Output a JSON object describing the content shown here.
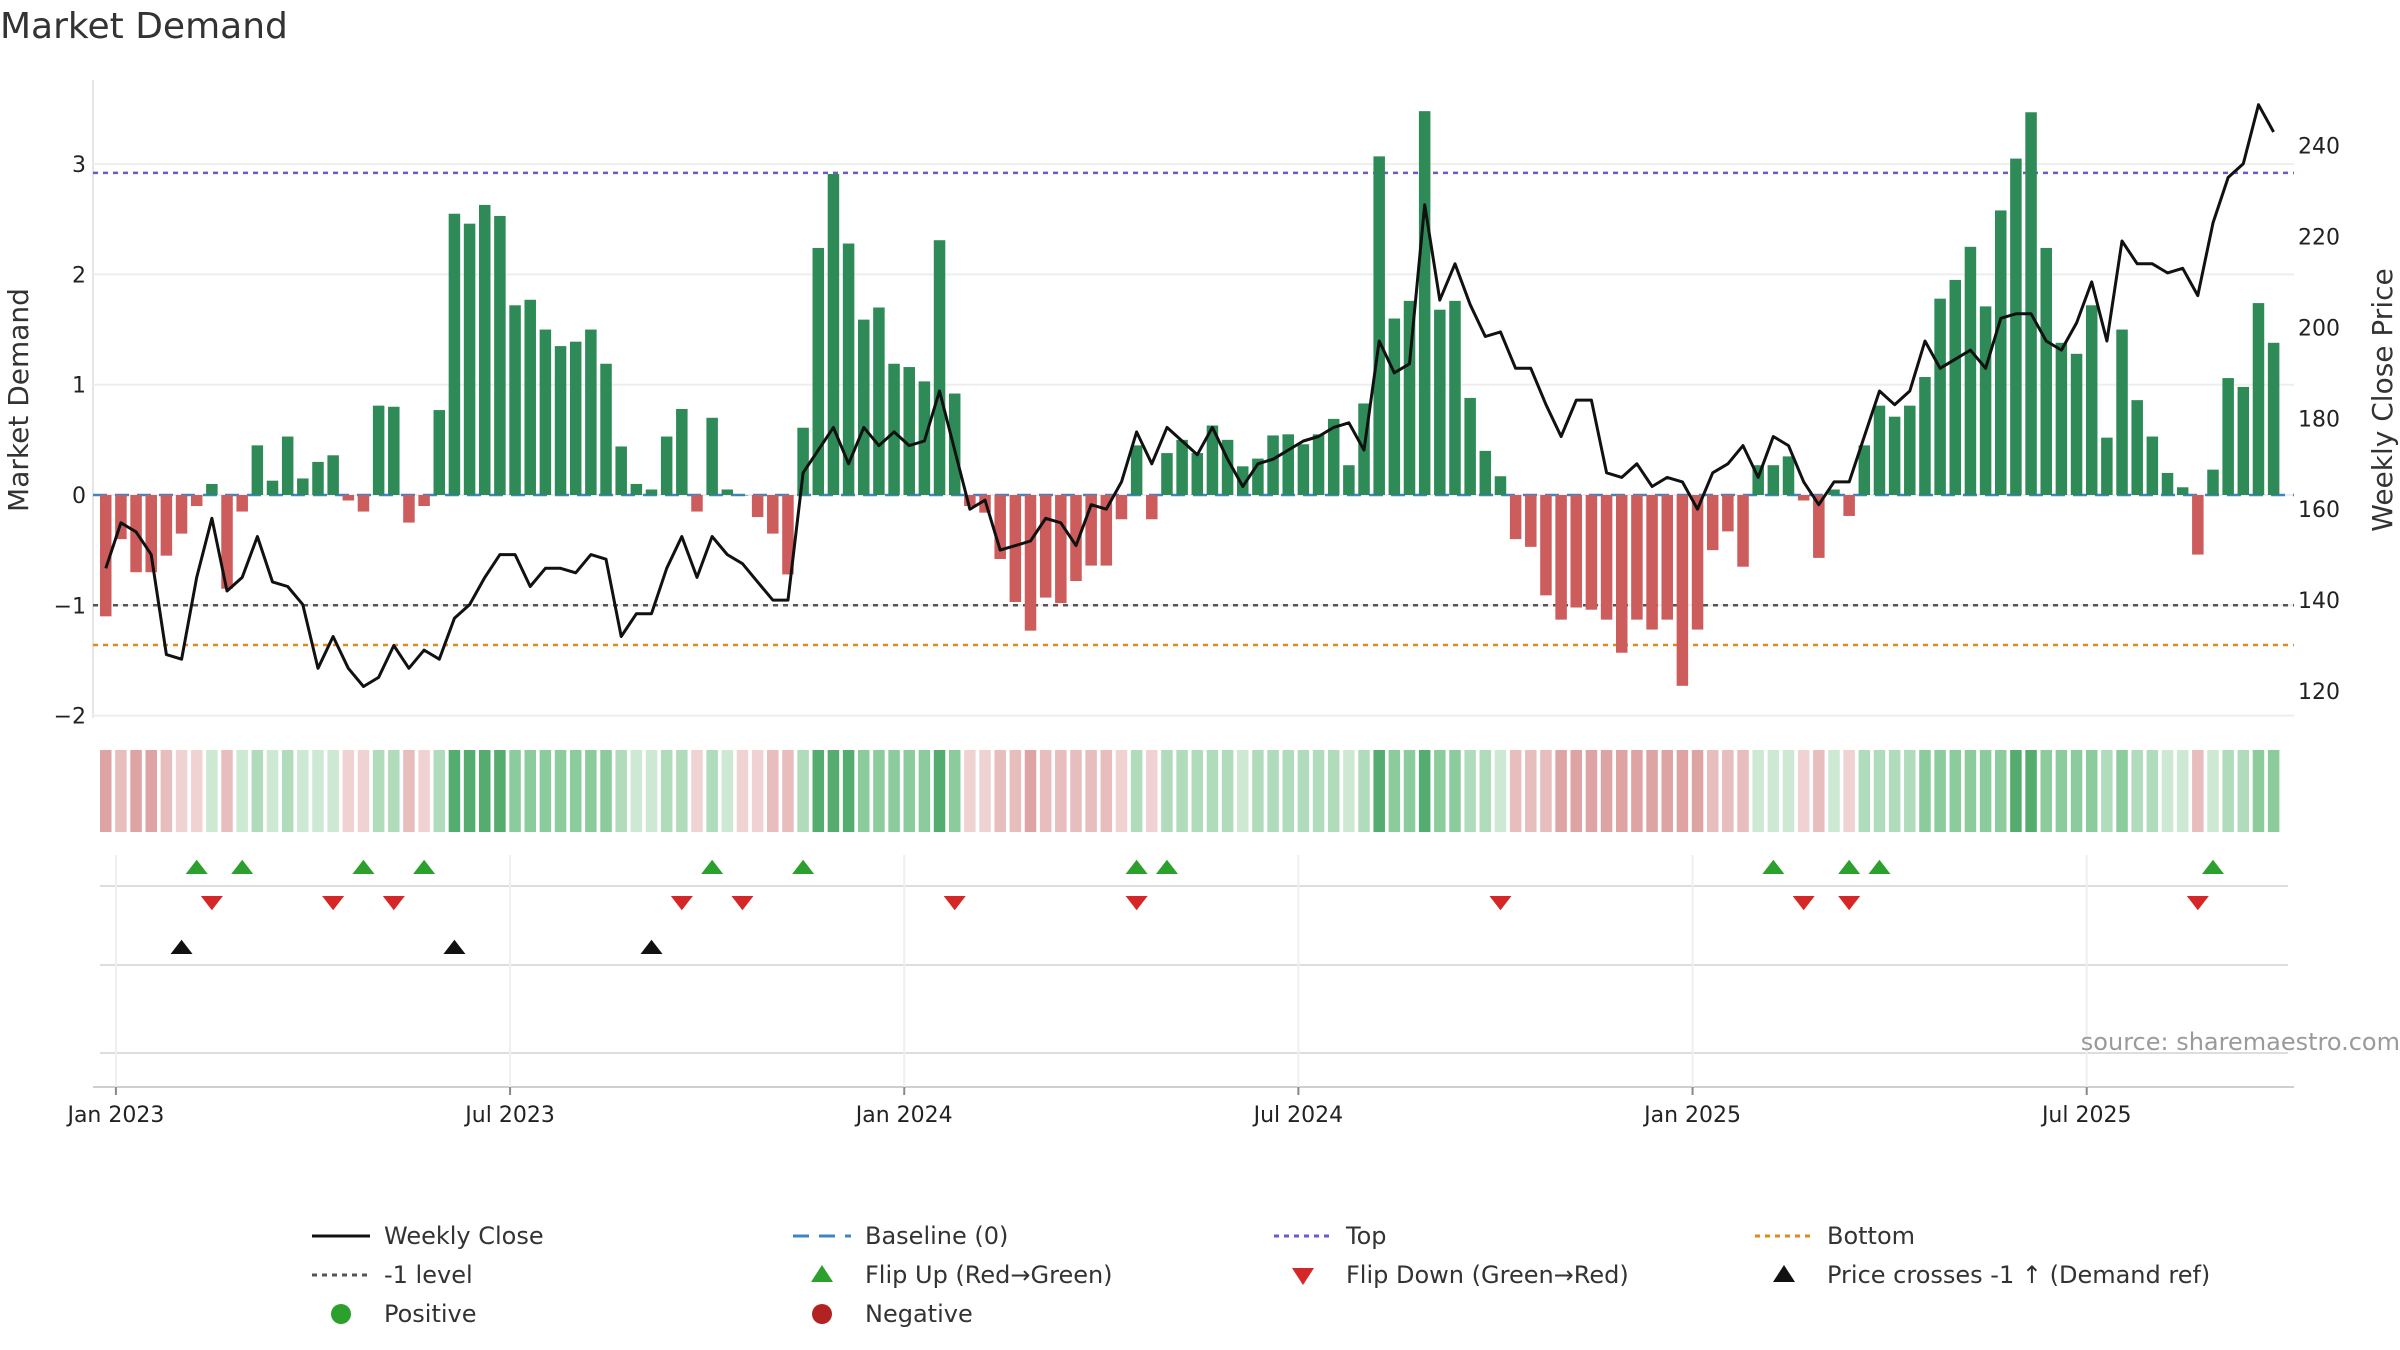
{
  "chart_data": {
    "type": "bar+line",
    "title": "Market Demand",
    "ylabel_left": "Market Demand",
    "ylabel_right": "Weekly Close Price",
    "ylim_left": [
      -2.2,
      3.6
    ],
    "ylim_right": [
      110,
      250
    ],
    "left_ticks": [
      "−2",
      "−1",
      "0",
      "1",
      "2",
      "3"
    ],
    "left_tick_values": [
      -2,
      -1,
      0,
      1,
      2,
      3
    ],
    "right_ticks": [
      "120",
      "140",
      "160",
      "180",
      "200",
      "220",
      "240"
    ],
    "right_tick_values": [
      120,
      140,
      160,
      180,
      200,
      220,
      240
    ],
    "x_ticks": [
      "Jan 2023",
      "Jul 2023",
      "Jan 2024",
      "Jul 2024",
      "Jan 2025",
      "Jul 2025"
    ],
    "x_tick_weeks": [
      1,
      27,
      53,
      79,
      105,
      131
    ],
    "reference_lines": {
      "top": 2.92,
      "bottom": -1.36,
      "minus_one": -1.0,
      "baseline": 0
    },
    "demand": [
      -1.1,
      -0.4,
      -0.7,
      -0.7,
      -0.55,
      -0.35,
      -0.1,
      0.1,
      -0.85,
      -0.15,
      0.45,
      0.13,
      0.53,
      0.15,
      0.3,
      0.36,
      -0.05,
      -0.15,
      0.81,
      0.8,
      -0.25,
      -0.1,
      0.77,
      2.55,
      2.46,
      2.63,
      2.53,
      1.72,
      1.77,
      1.5,
      1.35,
      1.39,
      1.5,
      1.19,
      0.44,
      0.1,
      0.05,
      0.53,
      0.78,
      -0.15,
      0.7,
      0.05,
      0,
      -0.2,
      -0.35,
      -0.72,
      0.61,
      2.24,
      2.91,
      2.28,
      1.59,
      1.7,
      1.19,
      1.16,
      1.03,
      2.31,
      0.92,
      -0.1,
      -0.16,
      -0.58,
      -0.97,
      -1.23,
      -0.93,
      -0.98,
      -0.78,
      -0.64,
      -0.64,
      -0.22,
      0.45,
      -0.22,
      0.38,
      0.5,
      0.38,
      0.63,
      0.5,
      0.26,
      0.33,
      0.54,
      0.55,
      0.46,
      0.55,
      0.69,
      0.27,
      0.83,
      3.07,
      1.6,
      1.76,
      3.48,
      1.68,
      1.76,
      0.88,
      0.4,
      0.17,
      -0.4,
      -0.47,
      -0.91,
      -1.13,
      -1.02,
      -1.04,
      -1.13,
      -1.43,
      -1.13,
      -1.22,
      -1.13,
      -1.73,
      -1.22,
      -0.5,
      -0.33,
      -0.65,
      0.27,
      0.27,
      0.35,
      -0.05,
      -0.57,
      0.05,
      -0.19,
      0.45,
      0.81,
      0.71,
      0.81,
      1.07,
      1.78,
      1.95,
      2.25,
      1.71,
      2.58,
      3.05,
      3.47,
      2.24,
      1.38,
      1.28,
      1.72,
      0.52,
      1.5,
      0.86,
      0.53,
      0.2,
      0.07,
      -0.54,
      0.23,
      1.06,
      0.98,
      1.74,
      1.38
    ],
    "close": [
      147,
      157,
      155,
      150,
      128,
      127,
      145,
      158,
      142,
      145,
      154,
      144,
      143,
      139,
      125,
      132,
      125,
      121,
      123,
      130,
      125,
      129,
      127,
      136,
      139,
      145,
      150,
      150,
      143,
      147,
      147,
      146,
      150,
      149,
      132,
      137,
      137,
      147,
      154,
      145,
      154,
      150,
      148,
      144,
      140,
      140,
      168,
      173,
      178,
      170,
      178,
      174,
      177,
      174,
      175,
      186,
      173,
      160,
      162,
      151,
      152,
      153,
      158,
      157,
      152,
      161,
      160,
      166,
      177,
      170,
      178,
      175,
      172,
      178,
      171,
      165,
      170,
      171,
      173,
      175,
      176,
      178,
      179,
      173,
      197,
      190,
      192,
      227,
      206,
      214,
      205,
      198,
      199,
      191,
      191,
      183,
      176,
      184,
      184,
      168,
      167,
      170,
      165,
      167,
      166,
      160,
      168,
      170,
      174,
      167,
      176,
      174,
      166,
      161,
      166,
      166,
      176,
      186,
      183,
      186,
      197,
      191,
      193,
      195,
      191,
      202,
      203,
      203,
      197,
      195,
      201,
      210,
      197,
      219,
      214,
      214,
      212,
      213,
      207,
      223,
      233,
      236,
      249,
      243
    ],
    "heat_levels": [
      "r3",
      "r2",
      "r3",
      "r3",
      "r2",
      "r1",
      "r1",
      "g1",
      "r2",
      "g1",
      "g2",
      "g1",
      "g2",
      "g1",
      "g1",
      "g1",
      "r1",
      "r1",
      "g2",
      "g2",
      "r2",
      "r1",
      "g2",
      "g4",
      "g4",
      "g4",
      "g4",
      "g3",
      "g3",
      "g3",
      "g3",
      "g3",
      "g3",
      "g3",
      "g2",
      "g1",
      "g1",
      "g2",
      "g2",
      "r1",
      "g2",
      "g1",
      "r1",
      "r1",
      "r2",
      "r2",
      "g2",
      "g4",
      "g4",
      "g4",
      "g3",
      "g3",
      "g3",
      "g3",
      "g3",
      "g4",
      "g3",
      "r1",
      "r1",
      "r2",
      "r2",
      "r3",
      "r2",
      "r2",
      "r2",
      "r2",
      "r2",
      "r1",
      "g2",
      "r1",
      "g2",
      "g2",
      "g2",
      "g2",
      "g2",
      "g1",
      "g2",
      "g2",
      "g2",
      "g2",
      "g2",
      "g2",
      "g1",
      "g2",
      "g4",
      "g3",
      "g3",
      "g4",
      "g3",
      "g3",
      "g2",
      "g2",
      "g1",
      "r2",
      "r2",
      "r2",
      "r3",
      "r3",
      "r3",
      "r3",
      "r3",
      "r3",
      "r3",
      "r3",
      "r3",
      "r3",
      "r2",
      "r2",
      "r2",
      "g1",
      "g1",
      "g1",
      "r1",
      "r2",
      "g1",
      "r1",
      "g2",
      "g2",
      "g2",
      "g2",
      "g3",
      "g3",
      "g3",
      "g3",
      "g3",
      "g3",
      "g4",
      "g4",
      "g3",
      "g3",
      "g3",
      "g3",
      "g2",
      "g3",
      "g2",
      "g2",
      "g1",
      "g1",
      "r2",
      "g1",
      "g2",
      "g2",
      "g3",
      "g3"
    ],
    "flip_up_weeks": [
      6,
      9,
      17,
      21,
      40,
      46,
      68,
      70,
      110,
      115,
      117,
      139
    ],
    "flip_down_weeks": [
      7,
      15,
      19,
      38,
      42,
      56,
      68,
      92,
      112,
      115,
      138
    ],
    "price_cross_weeks": [
      5,
      23,
      36
    ],
    "legend": [
      {
        "label": "Weekly Close",
        "kind": "solid",
        "color": "#111111"
      },
      {
        "label": "Baseline (0)",
        "kind": "dash-long",
        "color": "#3d85c6"
      },
      {
        "label": "Top",
        "kind": "dot",
        "color": "#6a5acd"
      },
      {
        "label": "Bottom",
        "kind": "dot",
        "color": "#e08a1e"
      },
      {
        "label": "-1 level",
        "kind": "dot",
        "color": "#555555"
      },
      {
        "label": "Flip Up (Red→Green)",
        "kind": "tri-up",
        "color": "#2ca02c"
      },
      {
        "label": "Flip Down (Green→Red)",
        "kind": "tri-down",
        "color": "#d62728"
      },
      {
        "label": "Price crosses -1 ↑ (Demand ref)",
        "kind": "tri-up",
        "color": "#111111"
      },
      {
        "label": "Positive",
        "kind": "dot-marker",
        "color": "#2ca02c"
      },
      {
        "label": "Negative",
        "kind": "dot-marker",
        "color": "#b22222"
      }
    ],
    "colors": {
      "positive": "#2e8b57",
      "negative": "#cd5c5c",
      "line": "#111111"
    }
  },
  "source_text": "source: sharemaestro.com"
}
